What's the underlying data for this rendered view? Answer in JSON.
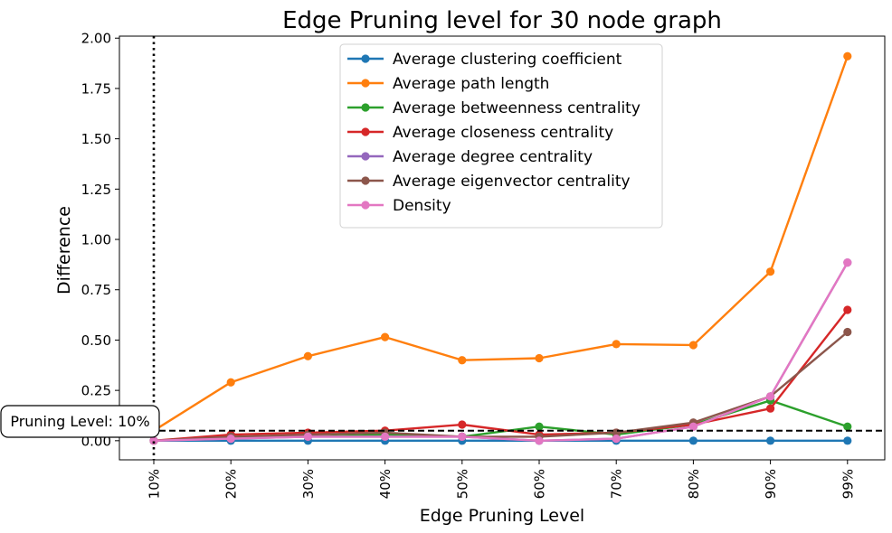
{
  "chart_data": {
    "type": "line",
    "title": "Edge Pruning level for 30 node graph",
    "xlabel": "Edge Pruning Level",
    "ylabel": "Difference",
    "categories": [
      "10%",
      "20%",
      "30%",
      "40%",
      "50%",
      "60%",
      "70%",
      "80%",
      "90%",
      "99%"
    ],
    "ylim": [
      -0.095,
      2.01
    ],
    "yticks": [
      "0.00",
      "0.25",
      "0.50",
      "0.75",
      "1.00",
      "1.25",
      "1.50",
      "1.75",
      "2.00"
    ],
    "grid": false,
    "legend_position": "top-center",
    "series": [
      {
        "name": "Average clustering coefficient",
        "color": "#1f77b4",
        "values": [
          0.0,
          0.0,
          0.0,
          0.0,
          0.0,
          0.0,
          0.0,
          0.0,
          0.0,
          0.0
        ]
      },
      {
        "name": "Average path length",
        "color": "#ff7f0e",
        "values": [
          0.05,
          0.29,
          0.42,
          0.515,
          0.4,
          0.41,
          0.48,
          0.475,
          0.84,
          1.91
        ]
      },
      {
        "name": "Average betweenness centrality",
        "color": "#2ca02c",
        "values": [
          0.0,
          0.02,
          0.02,
          0.03,
          0.02,
          0.07,
          0.03,
          0.08,
          0.2,
          0.07
        ]
      },
      {
        "name": "Average closeness centrality",
        "color": "#d62728",
        "values": [
          0.0,
          0.03,
          0.04,
          0.05,
          0.08,
          0.03,
          0.04,
          0.08,
          0.16,
          0.65
        ]
      },
      {
        "name": "Average degree centrality",
        "color": "#9467bd",
        "values": [
          0.0,
          0.01,
          0.02,
          0.02,
          0.02,
          0.0,
          0.01,
          0.07,
          0.22,
          0.885
        ]
      },
      {
        "name": "Average eigenvector centrality",
        "color": "#8c564b",
        "values": [
          0.0,
          0.02,
          0.03,
          0.04,
          0.02,
          0.02,
          0.04,
          0.09,
          0.22,
          0.54
        ]
      },
      {
        "name": "Density",
        "color": "#e377c2",
        "values": [
          0.0,
          0.01,
          0.02,
          0.02,
          0.02,
          0.0,
          0.01,
          0.07,
          0.22,
          0.885
        ]
      }
    ],
    "threshold_y": 0.05,
    "annotation": {
      "text": "Pruning Level: 10%",
      "category": "10%"
    }
  }
}
